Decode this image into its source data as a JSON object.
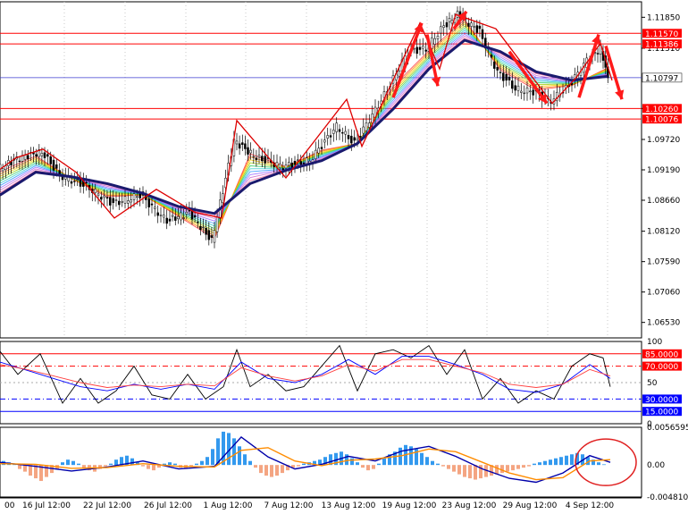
{
  "chart_data": [
    {
      "type": "line",
      "pane": "price",
      "y_ticks": [
        "1.11850",
        "1.11310",
        "1.10260",
        "1.09720",
        "1.09190",
        "1.08660",
        "1.08120",
        "1.07590",
        "1.07060",
        "1.06530"
      ],
      "y_tick_values": [
        1.1185,
        1.1131,
        1.1026,
        1.0972,
        1.0919,
        1.0866,
        1.0812,
        1.0759,
        1.0706,
        1.0653
      ],
      "ylim": [
        1.0626,
        1.1212
      ],
      "current_price": {
        "label": "1.10797",
        "value": 1.10797
      },
      "levels": [
        {
          "label": "1.11570",
          "value": 1.1157,
          "color": "#ff0000"
        },
        {
          "label": "1.11386",
          "value": 1.11386,
          "color": "#ff0000"
        },
        {
          "label": "1.10260",
          "value": 1.1026,
          "color": "#ff0000"
        },
        {
          "label": "1.10076",
          "value": 1.10076,
          "color": "#ff0000"
        }
      ],
      "series": [
        {
          "role": "slow_ma",
          "color": "#1a1a6e",
          "x": [
            0,
            40,
            80,
            120,
            160,
            200,
            240,
            280,
            320,
            360,
            400,
            440,
            480,
            520,
            560,
            600,
            640,
            680
          ],
          "y": [
            1.0875,
            1.0915,
            1.0907,
            1.0895,
            1.0878,
            1.0855,
            1.0843,
            1.0895,
            1.0918,
            1.0935,
            1.0965,
            1.1025,
            1.1095,
            1.1145,
            1.1125,
            1.109,
            1.1075,
            1.1082
          ]
        },
        {
          "role": "price",
          "color": "#000000",
          "x": [
            0,
            25,
            50,
            70,
            100,
            130,
            160,
            190,
            215,
            240,
            265,
            290,
            320,
            350,
            380,
            400,
            430,
            460,
            480,
            500,
            515,
            540,
            560,
            580,
            600,
            620,
            640,
            660,
            675,
            683
          ],
          "y": [
            1.092,
            1.094,
            1.095,
            1.091,
            1.089,
            1.086,
            1.0875,
            1.083,
            1.0845,
            1.0795,
            1.097,
            1.094,
            1.0925,
            1.0935,
            1.0995,
            1.0965,
            1.104,
            1.1125,
            1.113,
            1.117,
            1.119,
            1.116,
            1.109,
            1.106,
            1.1055,
            1.104,
            1.1065,
            1.111,
            1.113,
            1.1079
          ]
        }
      ],
      "zigzag_x": [
        0,
        18,
        48,
        85,
        128,
        175,
        218,
        248,
        265,
        320,
        388,
        405,
        470,
        492,
        510,
        555,
        618,
        645,
        672,
        685
      ],
      "zigzag_y": [
        1.092,
        1.094,
        1.0955,
        1.0915,
        1.0835,
        1.0885,
        1.0845,
        1.0835,
        1.1005,
        1.0905,
        1.1042,
        1.096,
        1.1175,
        1.1095,
        1.119,
        1.1165,
        1.1035,
        1.108,
        1.114,
        1.1075
      ],
      "arrows_x1": [
        440,
        478,
        508,
        570,
        648,
        678
      ],
      "arrows_y1": [
        1.1045,
        1.1155,
        1.1165,
        1.1125,
        1.1045,
        1.1135
      ],
      "arrows_x2": [
        472,
        490,
        522,
        612,
        670,
        696
      ],
      "arrows_y2": [
        1.1175,
        1.1065,
        1.1195,
        1.1035,
        1.1155,
        1.1042
      ]
    },
    {
      "type": "line",
      "pane": "stochastic",
      "y_ticks": [
        "100",
        "50",
        "0"
      ],
      "ylim": [
        0,
        100
      ],
      "levels": [
        {
          "label": "85.0000",
          "value": 85,
          "color": "#ff0000"
        },
        {
          "label": "70.0000",
          "value": 70,
          "color": "#ff0000"
        },
        {
          "label": "30.0000",
          "value": 30,
          "color": "#0000ff"
        },
        {
          "label": "15.0000",
          "value": 15,
          "color": "#0000ff"
        }
      ],
      "series": [
        {
          "role": "k_line",
          "color": "#000000",
          "x": [
            0,
            20,
            45,
            70,
            90,
            110,
            130,
            150,
            170,
            190,
            210,
            230,
            250,
            265,
            280,
            300,
            320,
            340,
            360,
            380,
            400,
            420,
            440,
            460,
            480,
            500,
            520,
            540,
            560,
            580,
            600,
            620,
            640,
            660,
            675,
            683
          ],
          "y": [
            88,
            60,
            85,
            25,
            55,
            25,
            40,
            70,
            35,
            30,
            60,
            30,
            45,
            90,
            45,
            60,
            40,
            45,
            70,
            95,
            40,
            85,
            90,
            80,
            95,
            60,
            90,
            30,
            55,
            25,
            40,
            30,
            70,
            85,
            80,
            45
          ]
        },
        {
          "role": "d_line",
          "color": "#0000ff",
          "x": [
            0,
            30,
            60,
            90,
            120,
            150,
            180,
            210,
            240,
            270,
            300,
            330,
            360,
            390,
            420,
            450,
            480,
            510,
            540,
            570,
            600,
            630,
            660,
            683
          ],
          "y": [
            75,
            65,
            55,
            45,
            40,
            48,
            42,
            48,
            42,
            75,
            55,
            50,
            60,
            78,
            60,
            82,
            82,
            72,
            60,
            42,
            38,
            48,
            72,
            55
          ]
        },
        {
          "role": "slow_line",
          "color": "#ff4040",
          "x": [
            0,
            30,
            60,
            90,
            120,
            150,
            180,
            210,
            240,
            270,
            300,
            330,
            360,
            390,
            420,
            450,
            480,
            510,
            540,
            570,
            600,
            630,
            660,
            683
          ],
          "y": [
            72,
            66,
            58,
            50,
            44,
            47,
            45,
            48,
            46,
            68,
            58,
            52,
            58,
            72,
            64,
            78,
            78,
            70,
            62,
            48,
            44,
            48,
            66,
            58
          ]
        }
      ]
    },
    {
      "type": "bar",
      "pane": "macd",
      "y_ticks": [
        "0.0056595",
        "0.00",
        "-0.004810"
      ],
      "ylim": [
        -0.00481,
        0.0056595
      ],
      "histogram_x": [
        4,
        10,
        16,
        22,
        28,
        34,
        40,
        46,
        52,
        58,
        64,
        70,
        76,
        82,
        88,
        94,
        100,
        106,
        112,
        118,
        124,
        130,
        136,
        142,
        148,
        154,
        160,
        166,
        172,
        178,
        184,
        190,
        196,
        202,
        208,
        214,
        220,
        226,
        232,
        238,
        244,
        250,
        256,
        262,
        268,
        274,
        280,
        286,
        292,
        298,
        304,
        310,
        316,
        322,
        328,
        334,
        340,
        346,
        352,
        358,
        364,
        370,
        376,
        382,
        388,
        394,
        400,
        406,
        412,
        418,
        424,
        430,
        436,
        442,
        448,
        454,
        460,
        466,
        472,
        478,
        484,
        490,
        496,
        502,
        508,
        514,
        520,
        526,
        532,
        538,
        544,
        550,
        556,
        562,
        568,
        574,
        580,
        586,
        592,
        598,
        604,
        610,
        616,
        622,
        628,
        634,
        640,
        646,
        652,
        658,
        664,
        670,
        676
      ],
      "histogram": [
        0.0006,
        0.0004,
        0.0002,
        -0.0006,
        -0.001,
        -0.0016,
        -0.002,
        -0.0024,
        -0.0018,
        -0.0012,
        -0.0006,
        0.0004,
        0.0008,
        0.0006,
        0.0002,
        -0.0004,
        -0.0008,
        -0.001,
        -0.0006,
        -0.0002,
        0.0002,
        0.0008,
        0.0012,
        0.0014,
        0.001,
        0.0004,
        -0.0002,
        -0.0006,
        -0.0008,
        -0.0004,
        0.0002,
        0.0004,
        0.0002,
        -0.0004,
        -0.0006,
        -0.0002,
        0.0002,
        0.0006,
        0.0012,
        0.0024,
        0.004,
        0.005,
        0.0048,
        0.004,
        0.0028,
        0.0016,
        0.0006,
        -0.0004,
        -0.0012,
        -0.0016,
        -0.0018,
        -0.0016,
        -0.0012,
        -0.0008,
        -0.0004,
        -0.0002,
        0.0002,
        0.0004,
        0.0006,
        0.0008,
        0.0012,
        0.0016,
        0.0018,
        0.002,
        0.0016,
        0.001,
        0.0004,
        -0.0004,
        -0.0008,
        -0.0006,
        0.0002,
        0.001,
        0.0016,
        0.002,
        0.0026,
        0.003,
        0.0028,
        0.0024,
        0.0018,
        0.0012,
        0.0006,
        0.0002,
        -0.0002,
        -0.0006,
        -0.001,
        -0.0014,
        -0.0018,
        -0.002,
        -0.0022,
        -0.002,
        -0.0018,
        -0.0016,
        -0.0014,
        -0.0012,
        -0.001,
        -0.0008,
        -0.0006,
        -0.0004,
        -0.0002,
        0.0002,
        0.0004,
        0.0006,
        0.0008,
        0.001,
        0.0012,
        0.0014,
        0.0016,
        0.0018,
        0.0016,
        0.0012,
        0.0008,
        0.0004,
        0.0001
      ],
      "series": [
        {
          "role": "macd_line",
          "color": "#0000aa",
          "x": [
            0,
            40,
            80,
            120,
            160,
            200,
            240,
            270,
            300,
            330,
            360,
            390,
            420,
            450,
            480,
            510,
            540,
            570,
            600,
            630,
            660,
            683
          ],
          "y": [
            0.0004,
            -0.0002,
            -0.0009,
            -0.0003,
            0.0006,
            -0.0006,
            -0.0002,
            0.0042,
            0.0012,
            -0.0006,
            0.0001,
            0.0013,
            0.0006,
            0.0021,
            0.0028,
            0.0013,
            -0.0006,
            -0.002,
            -0.0026,
            -0.0012,
            0.0014,
            0.0004
          ]
        },
        {
          "role": "signal_line",
          "color": "#ff8c00",
          "x": [
            0,
            40,
            80,
            120,
            160,
            200,
            240,
            270,
            300,
            330,
            360,
            390,
            420,
            450,
            480,
            510,
            540,
            570,
            600,
            630,
            660,
            683
          ],
          "y": [
            0.0002,
            0.0001,
            -0.0005,
            -0.0004,
            0.0002,
            -0.0002,
            -0.0003,
            0.0022,
            0.0026,
            0.0006,
            -0.0001,
            0.0007,
            0.0009,
            0.0014,
            0.0024,
            0.002,
            0.0004,
            -0.0012,
            -0.0022,
            -0.0019,
            0.0006,
            0.0008
          ]
        }
      ]
    }
  ],
  "x_labels": [
    "00",
    "16 Jul 12:00",
    "22 Jul 12:00",
    "26 Jul 12:00",
    "1 Aug 12:00",
    "7 Aug 12:00",
    "13 Aug 12:00",
    "19 Aug 12:00",
    "23 Aug 12:00",
    "29 Aug 12:00",
    "4 Sep 12:00"
  ],
  "x_label_positions": [
    5,
    52,
    120,
    188,
    255,
    323,
    390,
    458,
    525,
    593,
    660
  ],
  "colors": {
    "axis": "#000000",
    "grid": "#c0c0c0",
    "price_bg": "#ffffff"
  }
}
